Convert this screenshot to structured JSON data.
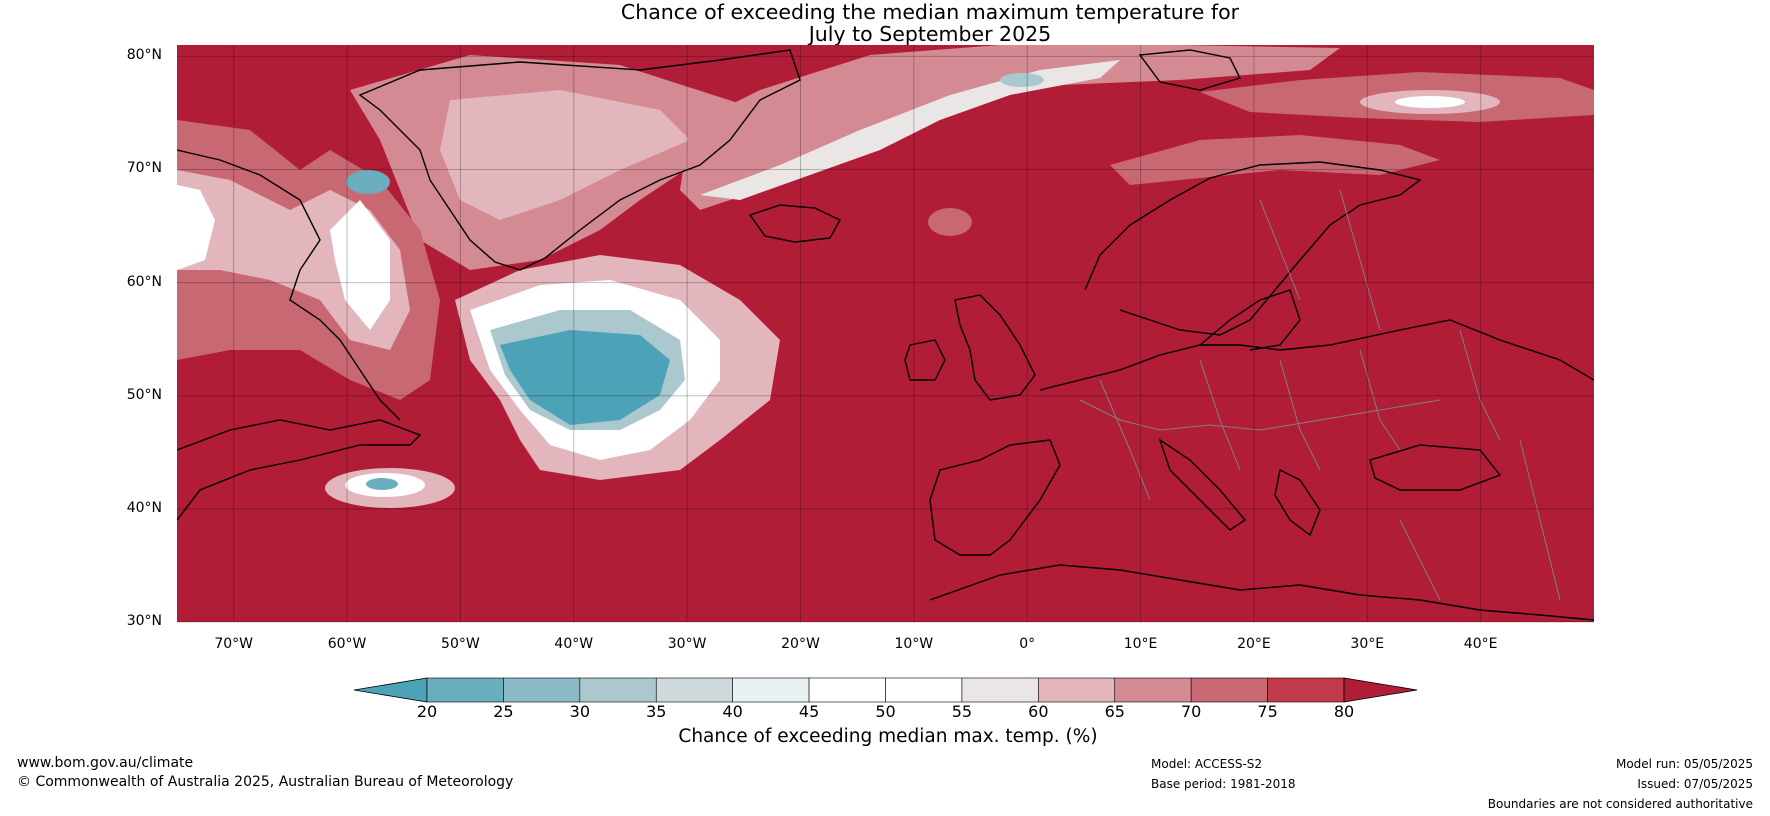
{
  "title_line1": "Chance of exceeding the median maximum temperature for",
  "title_line2": "July to September 2025",
  "map": {
    "lat_labels": [
      "80°N",
      "70°N",
      "60°N",
      "50°N",
      "40°N",
      "30°N"
    ],
    "lon_labels": [
      "70°W",
      "60°W",
      "50°W",
      "40°W",
      "30°W",
      "20°W",
      "10°W",
      "0°",
      "10°E",
      "20°E",
      "30°E",
      "40°E"
    ],
    "extent": {
      "lon_min": -75,
      "lon_max": 50,
      "lat_min": 30,
      "lat_max": 81
    }
  },
  "colorbar": {
    "title": "Chance of exceeding median max. temp. (%)",
    "ticks": [
      "20",
      "25",
      "30",
      "35",
      "40",
      "45",
      "50",
      "55",
      "60",
      "65",
      "70",
      "75",
      "80"
    ],
    "colors": [
      "#4ca3b7",
      "#6aadbd",
      "#8bbac6",
      "#abc8ce",
      "#ced9dd",
      "#e9f1f3",
      "#ffffff",
      "#ffffff",
      "#eae6e6",
      "#e2b6bc",
      "#d48a92",
      "#c86872",
      "#c23b4b",
      "#b11c37"
    ]
  },
  "footer": {
    "website": "www.bom.gov.au/climate",
    "copyright": "© Commonwealth of Australia 2025, Australian Bureau of Meteorology",
    "model": "Model: ACCESS-S2",
    "base_period": "Base period: 1981-2018",
    "model_run": "Model run: 05/05/2025",
    "issued": "Issued: 07/05/2025",
    "disclaimer": "Boundaries are not considered authoritative"
  },
  "colors": {
    "warm_high": "#b11c37",
    "cool_low": "#4ca3b7",
    "coast": "#000000",
    "border": "#808080"
  }
}
